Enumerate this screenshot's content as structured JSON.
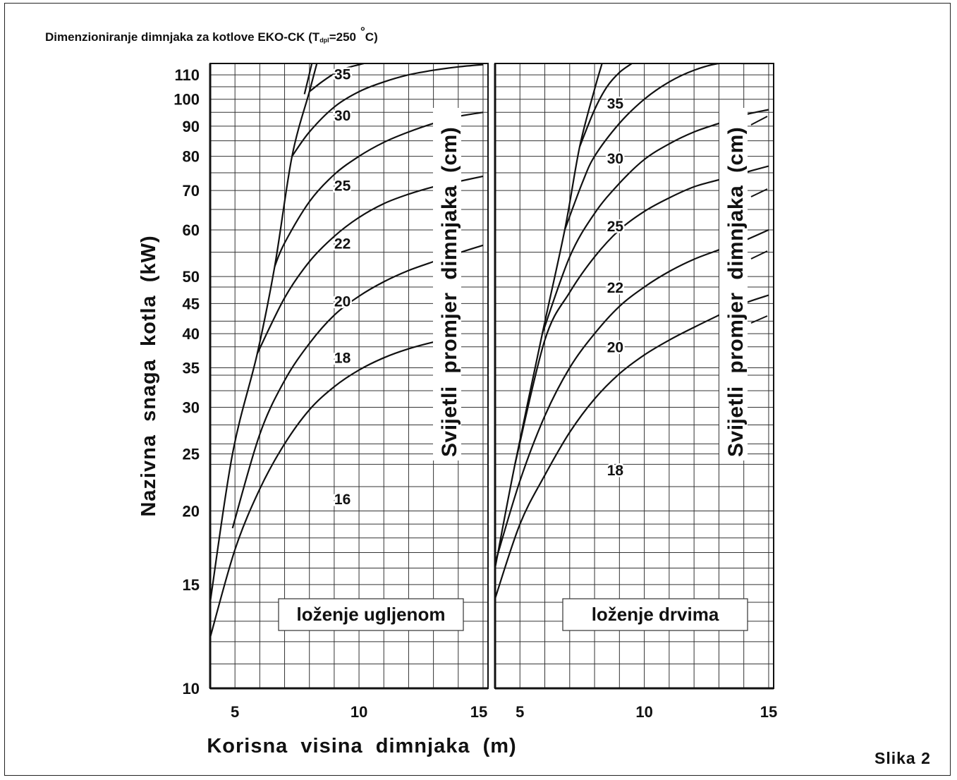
{
  "figure": {
    "title_main": "Dimenzioniranje dimnjaka za kotlove EKO-CK (T",
    "title_sub": "dpl",
    "title_rest": "=250",
    "title_degree": "°",
    "title_end": "C)",
    "caption": "Slika 2"
  },
  "chart_data": [
    {
      "type": "line",
      "panel": "left",
      "box_label": "loženje ugljenom",
      "vertical_label": "Svijetli promjer dimnjaka (cm)",
      "xlabel": "Korisna visina dimnjaka (m)",
      "ylabel": "Nazivna snaga kotla (kW)",
      "x_ticks": [
        5,
        10,
        15
      ],
      "y_ticks": [
        10,
        15,
        20,
        25,
        30,
        35,
        40,
        45,
        50,
        60,
        70,
        80,
        90,
        100,
        110
      ],
      "xlim": [
        4,
        15.2
      ],
      "ylim": [
        10,
        115
      ],
      "y_scale": "log",
      "grid": true,
      "series": [
        {
          "name": "16",
          "x": [
            4,
            5,
            6,
            7,
            8,
            9,
            10,
            11,
            12,
            13,
            14
          ],
          "y": [
            12.2,
            17.2,
            21.8,
            26.0,
            29.7,
            32.5,
            34.7,
            36.4,
            37.7,
            38.7,
            39.5
          ]
        },
        {
          "name": "18",
          "x": [
            4.9,
            6,
            7,
            8,
            9,
            10,
            11,
            12,
            13,
            14,
            15
          ],
          "y": [
            18.7,
            27.0,
            33.3,
            38.5,
            43.0,
            46.3,
            49.0,
            51.2,
            53.0,
            54.8,
            56.5
          ]
        },
        {
          "name": "20",
          "x": [
            5.9,
            7,
            8,
            9,
            10,
            11,
            12,
            13,
            14,
            15
          ],
          "y": [
            37.0,
            46.0,
            53.0,
            58.5,
            63.0,
            66.5,
            69.0,
            71.0,
            72.5,
            74.0
          ]
        },
        {
          "name": "22",
          "x": [
            6.6,
            7,
            8,
            9,
            10,
            11,
            12,
            13,
            14,
            15
          ],
          "y": [
            52.0,
            57.0,
            67.0,
            74.5,
            80.0,
            84.5,
            88.0,
            91.0,
            93.5,
            95.0
          ]
        },
        {
          "name": "25",
          "x": [
            7.3,
            8,
            9,
            10,
            11,
            12,
            13,
            14,
            15
          ],
          "y": [
            80.0,
            88.0,
            97.0,
            103.0,
            107.0,
            110.0,
            112.0,
            113.5,
            114.5
          ]
        },
        {
          "name": "30",
          "x": [
            8.0,
            8.5,
            9,
            9.5,
            10.2
          ],
          "y": [
            103.0,
            107.0,
            110.5,
            113.0,
            115.0
          ]
        },
        {
          "name": "35",
          "x": [
            7.8,
            8.1
          ],
          "y": [
            102.0,
            115.0
          ]
        },
        {
          "name": "envelope",
          "x": [
            4,
            4.9,
            5.9,
            6.6,
            7.3,
            8.0,
            8.3
          ],
          "y": [
            14.0,
            25.0,
            37.0,
            52.0,
            80.0,
            103.0,
            115.0
          ]
        }
      ],
      "curve_labels": [
        {
          "text": "16",
          "x": 9.0,
          "y": 21.0
        },
        {
          "text": "18",
          "x": 9.0,
          "y": 36.5
        },
        {
          "text": "20",
          "x": 9.0,
          "y": 45.5
        },
        {
          "text": "22",
          "x": 9.0,
          "y": 57.0
        },
        {
          "text": "25",
          "x": 9.0,
          "y": 71.5
        },
        {
          "text": "30",
          "x": 9.0,
          "y": 94.0
        },
        {
          "text": "35",
          "x": 9.0,
          "y": 110.5
        }
      ]
    },
    {
      "type": "line",
      "panel": "right",
      "box_label": "loženje drvima",
      "vertical_label": "Svijetli promjer dimnjaka (cm)",
      "x_ticks": [
        5,
        10,
        15
      ],
      "y_ticks": [
        10,
        15,
        20,
        25,
        30,
        35,
        40,
        45,
        50,
        60,
        70,
        80,
        90,
        100,
        110
      ],
      "xlim": [
        4,
        15.2
      ],
      "ylim": [
        10,
        115
      ],
      "y_scale": "log",
      "grid": true,
      "series": [
        {
          "name": "18",
          "x": [
            4,
            5,
            6,
            7,
            8,
            9,
            10,
            11,
            12,
            13,
            14,
            15
          ],
          "y": [
            14.2,
            19.0,
            23.0,
            27.2,
            31.0,
            34.2,
            36.8,
            39.0,
            41.0,
            43.0,
            45.0,
            46.5
          ]
        },
        {
          "name": "20",
          "x": [
            4,
            5,
            6,
            7,
            8,
            9,
            10,
            11,
            12,
            13,
            14,
            15
          ],
          "y": [
            16.3,
            22.5,
            29.0,
            35.0,
            40.0,
            44.5,
            48.0,
            51.0,
            53.5,
            55.5,
            57.5,
            60.0
          ]
        },
        {
          "name": "22",
          "x": [
            4.8,
            6,
            7,
            8,
            9,
            10,
            11,
            12,
            13,
            14,
            15
          ],
          "y": [
            24.0,
            39.0,
            47.0,
            54.0,
            60.0,
            64.5,
            68.0,
            71.0,
            73.0,
            75.0,
            77.0
          ]
        },
        {
          "name": "25",
          "x": [
            5.9,
            7,
            8,
            9,
            10,
            11,
            12,
            13,
            14,
            15
          ],
          "y": [
            40.0,
            54.0,
            64.0,
            72.0,
            79.0,
            84.0,
            88.0,
            91.0,
            94.0,
            96.0
          ]
        },
        {
          "name": "30",
          "x": [
            6.8,
            7.5,
            8,
            9,
            10,
            11,
            12,
            13,
            14,
            15
          ],
          "y": [
            60.0,
            72.0,
            80.0,
            91.0,
            100.0,
            107.0,
            112.0,
            115.0,
            115.0,
            115.0
          ]
        },
        {
          "name": "35",
          "x": [
            7.4,
            8,
            8.5,
            9,
            9.5
          ],
          "y": [
            83.0,
            96.0,
            105.0,
            111.0,
            115.0
          ]
        },
        {
          "name": "envelope",
          "x": [
            4,
            4.8,
            5.9,
            6.8,
            7.4,
            8.0,
            8.3
          ],
          "y": [
            16.0,
            24.0,
            40.0,
            60.0,
            83.0,
            104.0,
            115.0
          ]
        }
      ],
      "curve_labels": [
        {
          "text": "18",
          "x": 8.5,
          "y": 23.5
        },
        {
          "text": "20",
          "x": 8.5,
          "y": 38.0
        },
        {
          "text": "22",
          "x": 8.5,
          "y": 48.0
        },
        {
          "text": "25",
          "x": 8.5,
          "y": 61.0
        },
        {
          "text": "30",
          "x": 8.5,
          "y": 79.5
        },
        {
          "text": "35",
          "x": 8.5,
          "y": 98.5
        }
      ]
    }
  ]
}
